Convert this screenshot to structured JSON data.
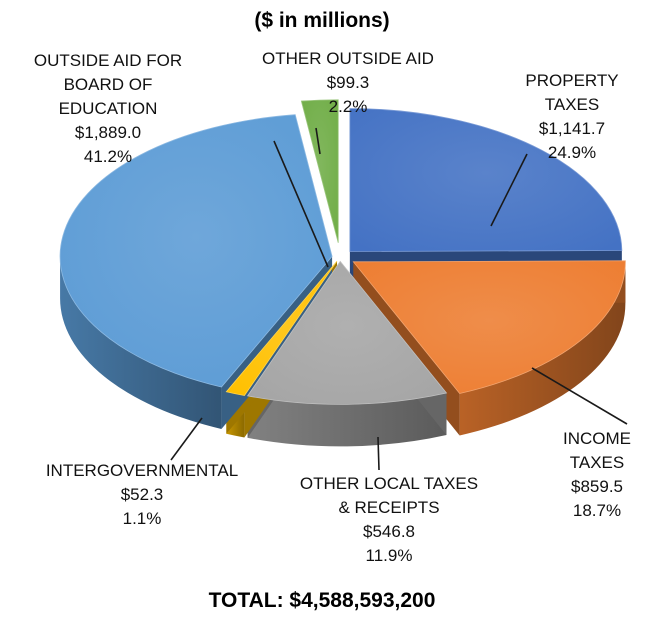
{
  "chart_data": {
    "type": "pie",
    "title": "($ in millions)",
    "footer": "TOTAL: $4,588,593,200",
    "slices": [
      {
        "label_lines": [
          "PROPERTY",
          "TAXES"
        ],
        "value": 1141.7,
        "value_label": "$1,141.7",
        "percent": "24.9%",
        "color": "#4472C4"
      },
      {
        "label_lines": [
          "INCOME",
          "TAXES"
        ],
        "value": 859.5,
        "value_label": "$859.5",
        "percent": "18.7%",
        "color": "#ED7D31"
      },
      {
        "label_lines": [
          "OTHER LOCAL TAXES",
          "& RECEIPTS"
        ],
        "value": 546.8,
        "value_label": "$546.8",
        "percent": "11.9%",
        "color": "#A5A5A5"
      },
      {
        "label_lines": [
          "INTERGOVERNMENTAL"
        ],
        "value": 52.3,
        "value_label": "$52.3",
        "percent": "1.1%",
        "color": "#FFC000"
      },
      {
        "label_lines": [
          "OUTSIDE AID FOR",
          "BOARD OF",
          "EDUCATION"
        ],
        "value": 1889.0,
        "value_label": "$1,889.0",
        "percent": "41.2%",
        "color": "#5B9BD5"
      },
      {
        "label_lines": [
          "OTHER OUTSIDE AID"
        ],
        "value": 99.3,
        "value_label": "$99.3",
        "percent": "2.2%",
        "color": "#70AD47"
      }
    ]
  }
}
